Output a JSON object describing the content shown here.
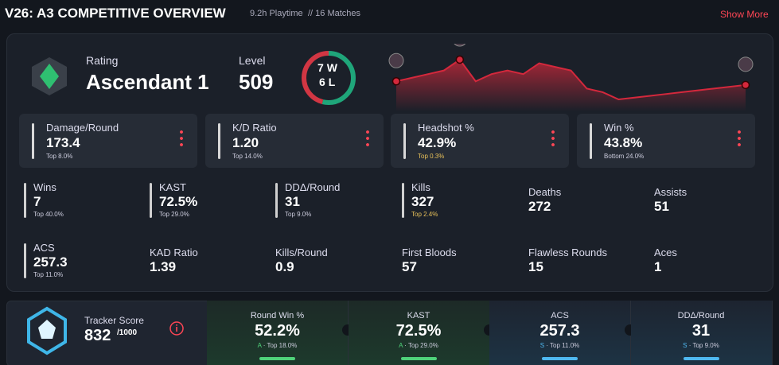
{
  "header": {
    "title": "V26: A3 COMPETITIVE OVERVIEW",
    "playtime": "9.2h Playtime",
    "matches": "// 16 Matches",
    "show_more": "Show More"
  },
  "rank": {
    "label": "Rating",
    "value": "Ascendant 1"
  },
  "level": {
    "label": "Level",
    "value": "509"
  },
  "record": {
    "wins": {
      "value": 7,
      "label": "W"
    },
    "losses": {
      "value": 6,
      "label": "L"
    }
  },
  "rating_trend": [
    100,
    101,
    102,
    103,
    106,
    100,
    102,
    103,
    102,
    105,
    104,
    103,
    98,
    97,
    95,
    95.5,
    96,
    96.5,
    97,
    97.5,
    98,
    98.5,
    99
  ],
  "main_stats": [
    {
      "name": "Damage/Round",
      "value": "173.4",
      "rank": "Top 8.0%"
    },
    {
      "name": "K/D Ratio",
      "value": "1.20",
      "rank": "Top 14.0%"
    },
    {
      "name": "Headshot %",
      "value": "42.9%",
      "rank": "Top 0.3%"
    },
    {
      "name": "Win %",
      "value": "43.8%",
      "rank": "Bottom 24.0%"
    }
  ],
  "stats": [
    {
      "name": "Wins",
      "value": "7",
      "rank": "Top 40.0%"
    },
    {
      "name": "KAST",
      "value": "72.5%",
      "rank": "Top 29.0%"
    },
    {
      "name": "DDΔ/Round",
      "value": "31",
      "rank": "Top 9.0%"
    },
    {
      "name": "Kills",
      "value": "327",
      "rank": "Top 2.4%"
    },
    {
      "name": "Deaths",
      "value": "272"
    },
    {
      "name": "Assists",
      "value": "51"
    },
    {
      "name": "ACS",
      "value": "257.3",
      "rank": "Top 11.0%"
    },
    {
      "name": "KAD Ratio",
      "value": "1.39"
    },
    {
      "name": "Kills/Round",
      "value": "0.9"
    },
    {
      "name": "First Bloods",
      "value": "57"
    },
    {
      "name": "Flawless Rounds",
      "value": "15"
    },
    {
      "name": "Aces",
      "value": "1"
    }
  ],
  "tracker": {
    "label": "Tracker Score",
    "value": "832",
    "max": "/1000"
  },
  "tracker_stats": [
    {
      "name": "Round Win %",
      "value": "52.2%",
      "grade": "A",
      "rank": "· Top 18.0%"
    },
    {
      "name": "KAST",
      "value": "72.5%",
      "grade": "A",
      "rank": "· Top 29.0%"
    },
    {
      "name": "ACS",
      "value": "257.3",
      "grade": "S",
      "rank": "· Top 11.0%"
    },
    {
      "name": "DDΔ/Round",
      "value": "31",
      "grade": "S",
      "rank": "· Top 9.0%"
    }
  ]
}
